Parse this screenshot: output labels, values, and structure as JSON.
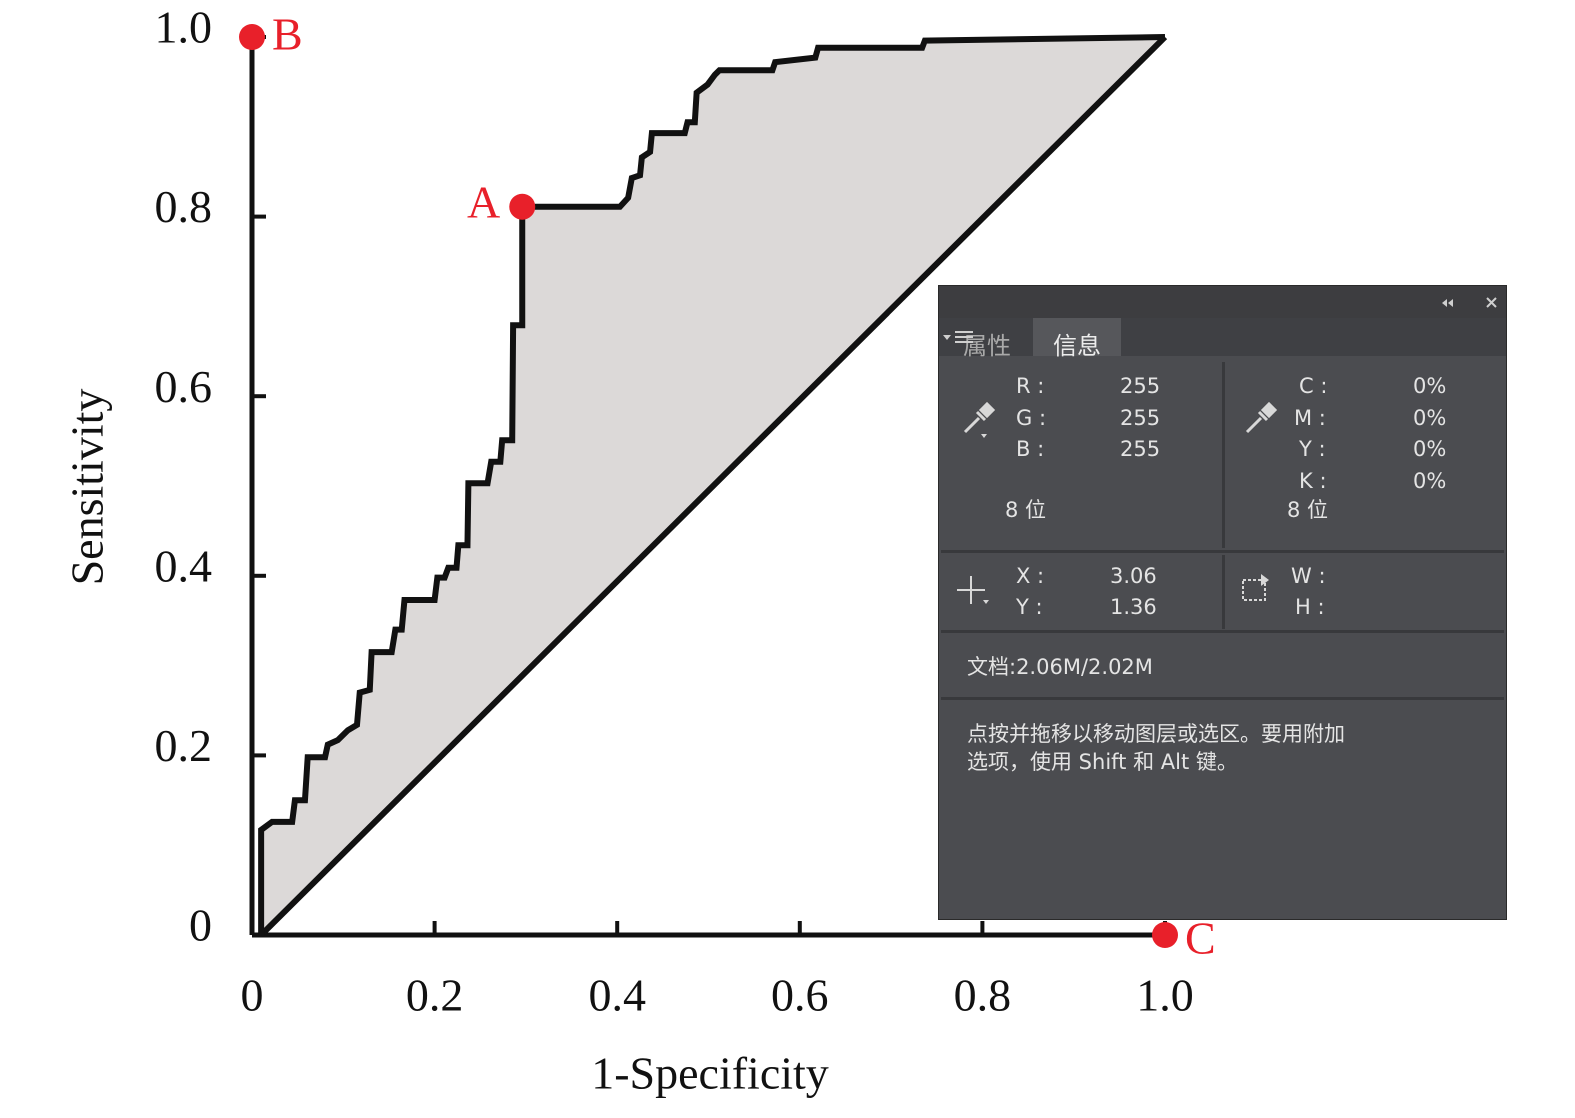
{
  "chart_data": {
    "type": "line",
    "xlabel": "1-Specificity",
    "ylabel": "Sensitivity",
    "x": [
      0.01,
      0.01,
      0.022,
      0.044,
      0.047,
      0.058,
      0.061,
      0.08,
      0.083,
      0.094,
      0.105,
      0.115,
      0.118,
      0.129,
      0.131,
      0.153,
      0.157,
      0.164,
      0.167,
      0.2,
      0.203,
      0.211,
      0.215,
      0.224,
      0.226,
      0.236,
      0.237,
      0.258,
      0.262,
      0.272,
      0.274,
      0.285,
      0.286,
      0.296,
      0.296,
      0.403,
      0.412,
      0.416,
      0.425,
      0.427,
      0.436,
      0.438,
      0.474,
      0.477,
      0.485,
      0.487,
      0.499,
      0.507,
      0.512,
      0.57,
      0.573,
      0.617,
      0.62,
      0.734,
      0.737,
      1
    ],
    "values": [
      0,
      0.117,
      0.126,
      0.126,
      0.15,
      0.15,
      0.198,
      0.198,
      0.212,
      0.217,
      0.228,
      0.234,
      0.27,
      0.273,
      0.315,
      0.315,
      0.34,
      0.34,
      0.373,
      0.373,
      0.398,
      0.398,
      0.409,
      0.409,
      0.434,
      0.434,
      0.503,
      0.503,
      0.527,
      0.527,
      0.551,
      0.551,
      0.679,
      0.679,
      0.811,
      0.811,
      0.821,
      0.843,
      0.846,
      0.866,
      0.872,
      0.893,
      0.893,
      0.905,
      0.905,
      0.938,
      0.947,
      0.958,
      0.963,
      0.963,
      0.972,
      0.977,
      0.988,
      0.988,
      0.996,
      1
    ],
    "color": "#111111",
    "fill_color": "#dcd9d8",
    "reference_line": {
      "x": [
        0.01,
        1
      ],
      "values": [
        0,
        1
      ]
    },
    "annotations": [
      {
        "label": "A",
        "x": 0.296,
        "y": 0.811
      },
      {
        "label": "B",
        "x": 0,
        "y": 1
      },
      {
        "label": "C",
        "x": 1,
        "y": 0
      }
    ],
    "annotation_color": "#e8202a",
    "xlim": [
      0,
      1
    ],
    "ylim": [
      0,
      1
    ],
    "xticks": [
      0,
      0.2,
      0.4,
      0.6,
      0.8,
      {
        "value": 1,
        "label": "1.0"
      }
    ],
    "yticks": [
      0,
      0.2,
      0.4,
      0.6,
      0.8,
      {
        "value": 1,
        "label": "1.0"
      }
    ]
  },
  "panel": {
    "tabs": [
      "属性",
      "信息"
    ],
    "rgb": {
      "labels": [
        "R :",
        "G :",
        "B :"
      ],
      "values": [
        "255",
        "255",
        "255"
      ],
      "depth": "8 位"
    },
    "cmyk": {
      "labels": [
        "C :",
        "M :",
        "Y :",
        "K :"
      ],
      "values": [
        "0%",
        "0%",
        "0%",
        "0%"
      ],
      "depth": "8 位"
    },
    "position": {
      "labels": [
        "X :",
        "Y :"
      ],
      "values": [
        "3.06",
        "1.36"
      ]
    },
    "size": {
      "labels": [
        "W :",
        "H :"
      ]
    },
    "document": "文档:2.06M/2.02M",
    "hint": [
      "点按并拖移以移动图层或选区。要用附加",
      "选项，使用 Shift 和 Alt 键。"
    ]
  }
}
